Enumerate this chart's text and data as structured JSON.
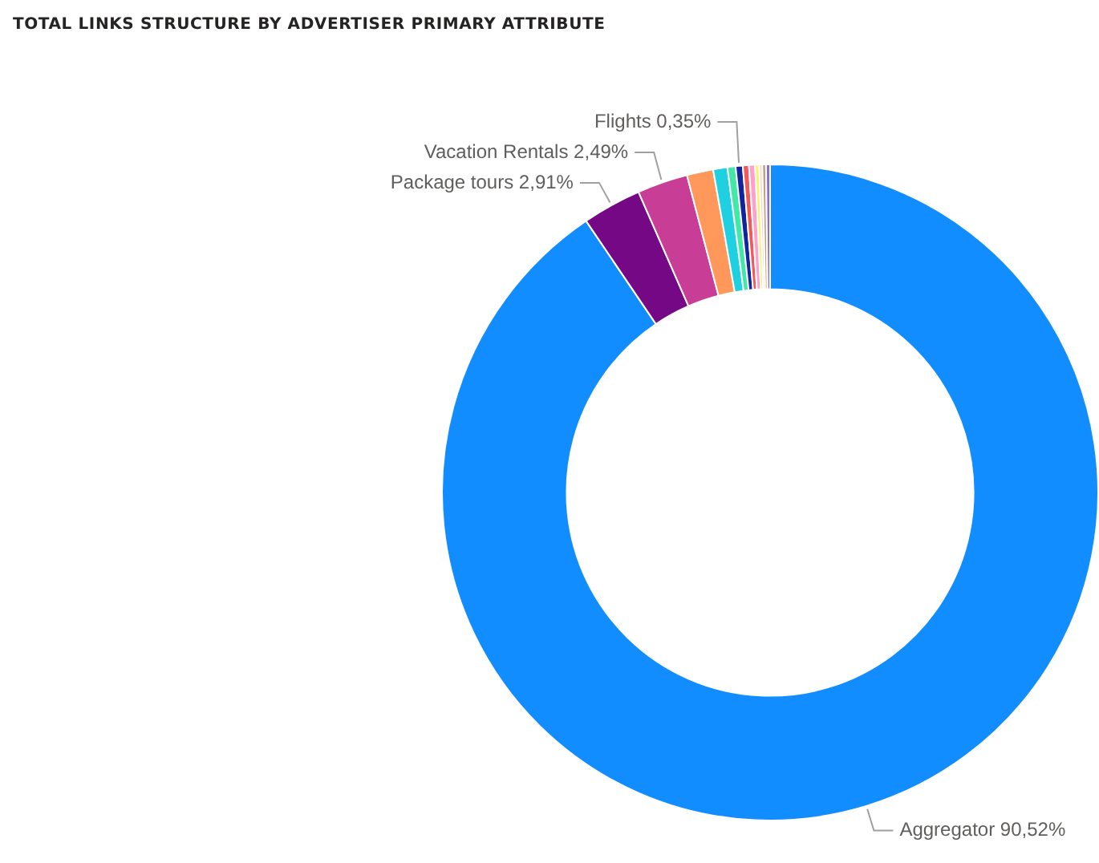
{
  "chart_data": {
    "type": "donut",
    "title": "TOTAL LINKS STRUCTURE BY ADVERTISER PRIMARY ATTRIBUTE",
    "categories": [
      "Aggregator",
      "Package tours",
      "Vacation Rentals",
      null,
      null,
      null,
      "Flights",
      null,
      null,
      null,
      null,
      null,
      null
    ],
    "values": [
      90.52,
      2.91,
      2.49,
      1.3,
      0.7,
      0.4,
      0.35,
      0.3,
      0.3,
      0.2,
      0.15,
      0.18,
      0.2
    ],
    "value_labels": [
      "90,52%",
      "2,91%",
      "2,49%",
      null,
      null,
      null,
      "0,35%",
      null,
      null,
      null,
      null,
      null,
      null
    ],
    "colors": [
      "#118dff",
      "#750985",
      "#c83d95",
      "#ff985a",
      "#1fd1e0",
      "#41e8a8",
      "#12239e",
      "#f25a5a",
      "#ff9fca",
      "#fff069",
      "#ffd0d0",
      "#c0a080",
      "#8a6fd0"
    ],
    "legend": false
  }
}
